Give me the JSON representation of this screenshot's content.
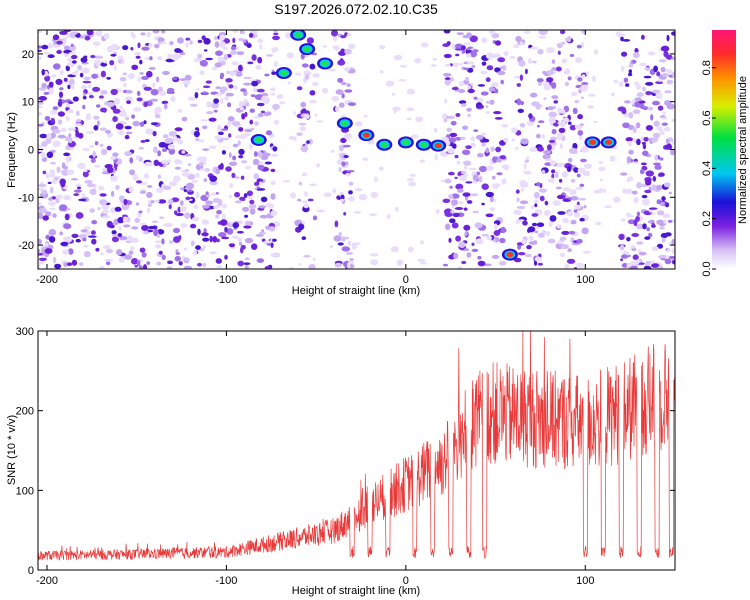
{
  "title": "S197.2026.072.02.10.C35",
  "chart_data": [
    {
      "type": "heatmap",
      "title": "S197.2026.072.02.10.C35",
      "xlabel": "Height of straight line (km)",
      "ylabel": "Frequency (Hz)",
      "xlim": [
        -205,
        150
      ],
      "ylim": [
        -25,
        25
      ],
      "xticks": [
        -200,
        -100,
        0,
        100
      ],
      "yticks": [
        -20,
        -10,
        0,
        10,
        20
      ],
      "colorbar": {
        "label": "Normalized spectral amplitude",
        "range": [
          0,
          0.95
        ],
        "ticks": [
          0.0,
          0.2,
          0.4,
          0.6,
          0.8
        ]
      },
      "blank_bands": [
        {
          "x0": -72,
          "x1": -60
        },
        {
          "x0": -50,
          "x1": -40
        },
        {
          "x0": -30,
          "x1": 22
        },
        {
          "x0": 55,
          "x1": 62
        },
        {
          "x0": 100,
          "x1": 120
        }
      ],
      "ridge": [
        {
          "x": -82,
          "freq": 2
        },
        {
          "x": -68,
          "freq": 16
        },
        {
          "x": -60,
          "freq": 24
        },
        {
          "x": -55,
          "freq": 21
        },
        {
          "x": -45,
          "freq": 18
        },
        {
          "x": -34,
          "freq": 5.5
        },
        {
          "x": -22,
          "freq": 3
        },
        {
          "x": -12,
          "freq": 1
        },
        {
          "x": 0,
          "freq": 1.5
        },
        {
          "x": 10,
          "freq": 1
        },
        {
          "x": 18,
          "freq": 0.8
        },
        {
          "x": 58,
          "freq": -22
        },
        {
          "x": 104,
          "freq": 1.5
        },
        {
          "x": 113,
          "freq": 1.5
        }
      ]
    },
    {
      "type": "line",
      "xlabel": "Height of straight line (km)",
      "ylabel": "SNR (10 * v/v)",
      "xlim": [
        -205,
        150
      ],
      "ylim": [
        0,
        300
      ],
      "xticks": [
        -200,
        -100,
        0,
        100
      ],
      "yticks": [
        0,
        100,
        200,
        300
      ],
      "series": [
        {
          "name": "SNR",
          "color": "#e83a3a",
          "envelope": [
            {
              "x": -205,
              "y": 20
            },
            {
              "x": -150,
              "y": 22
            },
            {
              "x": -100,
              "y": 25
            },
            {
              "x": -70,
              "y": 40
            },
            {
              "x": -40,
              "y": 55
            },
            {
              "x": -20,
              "y": 90
            },
            {
              "x": 0,
              "y": 120
            },
            {
              "x": 20,
              "y": 150
            },
            {
              "x": 35,
              "y": 200
            },
            {
              "x": 45,
              "y": 220
            },
            {
              "x": 60,
              "y": 215
            },
            {
              "x": 80,
              "y": 210
            },
            {
              "x": 100,
              "y": 205
            },
            {
              "x": 120,
              "y": 220
            },
            {
              "x": 140,
              "y": 240
            },
            {
              "x": 150,
              "y": 245
            }
          ],
          "dropouts": [
            -30,
            -20,
            -10,
            5,
            15,
            25,
            35,
            44,
            100,
            110,
            120,
            130,
            140,
            148
          ]
        }
      ]
    }
  ]
}
